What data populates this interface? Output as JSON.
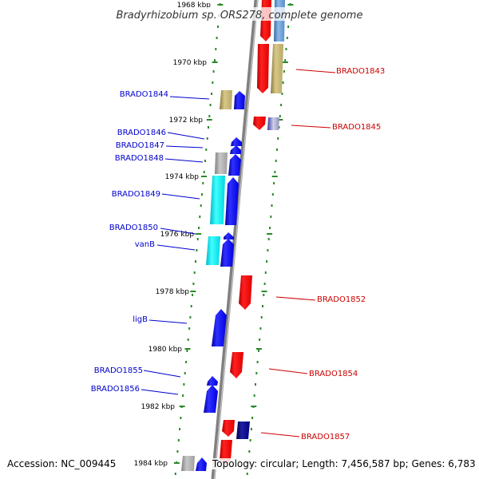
{
  "title": "Bradyrhizobium sp. ORS278, complete genome",
  "footer": {
    "accession": "Accession: NC_009445",
    "topology": "Topology: circular; Length: 7,456,587 bp; Genes: 6,783"
  },
  "ruler": [
    {
      "label": "1968 kbp"
    },
    {
      "label": "1970 kbp"
    },
    {
      "label": "1972 kbp"
    },
    {
      "label": "1974 kbp"
    },
    {
      "label": "1976 kbp"
    },
    {
      "label": "1978 kbp"
    },
    {
      "label": "1980 kbp"
    },
    {
      "label": "1982 kbp"
    },
    {
      "label": "1984 kbp"
    }
  ],
  "genes_left": [
    {
      "name": "BRADO1844"
    },
    {
      "name": "BRADO1846"
    },
    {
      "name": "BRADO1847"
    },
    {
      "name": "BRADO1848"
    },
    {
      "name": "BRADO1849"
    },
    {
      "name": "BRADO1850"
    },
    {
      "name": "vanB"
    },
    {
      "name": "ligB"
    },
    {
      "name": "BRADO1855"
    },
    {
      "name": "BRADO1856"
    }
  ],
  "genes_right": [
    {
      "name": "BRADO1843"
    },
    {
      "name": "BRADO1845"
    },
    {
      "name": "BRADO1852"
    },
    {
      "name": "BRADO1854"
    },
    {
      "name": "BRADO1857"
    }
  ],
  "colors": {
    "blue_label": "#0000cc",
    "red_label": "#cc0000",
    "forward_gene": "#0000ff",
    "reverse_gene": "#ff0000",
    "cyan_gene": "#00e5e5",
    "khaki_gene": "#c8b878",
    "grey_gene": "#a8a8a8",
    "navy_gene": "#000080",
    "steel_gene": "#5a8fc8",
    "tick": "#2a8a2a",
    "backbone": "#808080"
  }
}
